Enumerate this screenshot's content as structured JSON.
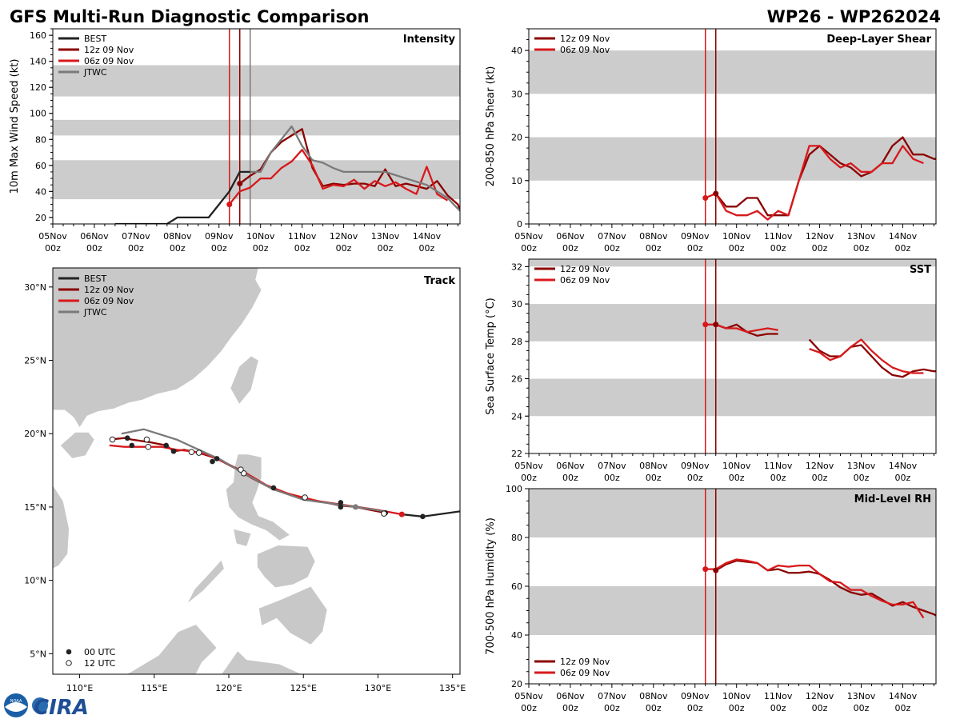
{
  "header": {
    "title_left": "GFS Multi-Run Diagnostic Comparison",
    "title_right": "WP26 - WP262024"
  },
  "logo": {
    "text": "CIRA",
    "noaa_text": "NOAA"
  },
  "colors": {
    "best": "#222222",
    "run12": "#8b0000",
    "run06": "#d7191c",
    "jtwc": "#7a7a7a",
    "band": "#cccccc",
    "land": "#c8c8c8"
  },
  "time_axis": {
    "range": [
      0,
      9.8
    ],
    "ticks": [
      0,
      1,
      2,
      3,
      4,
      5,
      6,
      7,
      8,
      9
    ],
    "labels": [
      "05Nov",
      "06Nov",
      "07Nov",
      "08Nov",
      "09Nov",
      "10Nov",
      "11Nov",
      "12Nov",
      "13Nov",
      "14Nov"
    ],
    "sublabel": "00z",
    "run_lines": [
      {
        "name": "06z 09 Nov",
        "t": 4.25
      },
      {
        "name": "12z 09 Nov",
        "t": 4.5
      }
    ],
    "jtwc_line": 4.75
  },
  "chart_data": [
    {
      "id": "intensity",
      "type": "line",
      "title": "Intensity",
      "ylabel": "10m Max Wind Speed (kt)",
      "ylim": [
        15,
        165
      ],
      "yticks": [
        20,
        40,
        60,
        80,
        100,
        120,
        140,
        160
      ],
      "bands": [
        [
          34,
          64
        ],
        [
          83,
          95
        ],
        [
          113,
          137
        ]
      ],
      "legend": [
        "BEST",
        "12z 09 Nov",
        "06z 09 Nov",
        "JTWC"
      ],
      "series": [
        {
          "name": "BEST",
          "x": [
            1.5,
            1.75,
            2,
            2.25,
            2.5,
            2.75,
            3,
            3.25,
            3.5,
            3.75,
            4,
            4.25,
            4.5,
            4.75
          ],
          "y": [
            15,
            15,
            15,
            15,
            15,
            15,
            20,
            20,
            20,
            20,
            30,
            40,
            55,
            55
          ]
        },
        {
          "name": "12z 09 Nov",
          "x": [
            4.5,
            4.75,
            5,
            5.25,
            5.5,
            5.75,
            6,
            6.25,
            6.5,
            6.75,
            7,
            7.25,
            7.5,
            7.75,
            8,
            8.25,
            8.5,
            8.75,
            9,
            9.25,
            9.5,
            9.75,
            9.8
          ],
          "y": [
            46,
            52,
            57,
            70,
            78,
            83,
            88,
            58,
            44,
            46,
            45,
            46,
            46,
            44,
            57,
            44,
            46,
            44,
            42,
            48,
            37,
            30,
            26
          ]
        },
        {
          "name": "06z 09 Nov",
          "x": [
            4.25,
            4.5,
            4.75,
            5,
            5.25,
            5.5,
            5.75,
            6,
            6.25,
            6.5,
            6.75,
            7,
            7.25,
            7.5,
            7.75,
            8,
            8.25,
            8.5,
            8.75,
            9,
            9.25,
            9.5
          ],
          "y": [
            30,
            40,
            43,
            50,
            50,
            58,
            63,
            72,
            60,
            42,
            45,
            44,
            49,
            42,
            48,
            44,
            47,
            42,
            38,
            59,
            38,
            33
          ]
        },
        {
          "name": "JTWC",
          "x": [
            4.75,
            5,
            5.25,
            5.75,
            6,
            6.25,
            6.5,
            6.75,
            7,
            7.5,
            7.75,
            8,
            8.5,
            9,
            9.5,
            9.8
          ],
          "y": [
            55,
            55,
            70,
            90,
            75,
            64,
            62,
            58,
            55,
            55,
            55,
            55,
            50,
            45,
            35,
            25
          ]
        }
      ],
      "start_markers": [
        {
          "series": "06z 09 Nov",
          "x": 4.25,
          "y": 30
        },
        {
          "series": "12z 09 Nov",
          "x": 4.5,
          "y": 46
        }
      ]
    },
    {
      "id": "shear",
      "type": "line",
      "title": "Deep-Layer Shear",
      "ylabel": "200-850 hPa Shear (kt)",
      "ylim": [
        0,
        45
      ],
      "yticks": [
        0,
        10,
        20,
        30,
        40
      ],
      "bands": [
        [
          10,
          20
        ],
        [
          30,
          40
        ]
      ],
      "legend": [
        "12z 09 Nov",
        "06z 09 Nov"
      ],
      "series": [
        {
          "name": "12z 09 Nov",
          "x": [
            4.5,
            4.75,
            5,
            5.25,
            5.5,
            5.75,
            6,
            6.25,
            6.5,
            6.75,
            7,
            7.25,
            7.5,
            7.75,
            8,
            8.25,
            8.5,
            8.75,
            9,
            9.25,
            9.5,
            9.75,
            9.8
          ],
          "y": [
            7,
            4,
            4,
            6,
            6,
            2,
            2,
            2,
            10,
            16,
            18,
            16,
            14,
            13,
            11,
            12,
            14,
            18,
            20,
            16,
            16,
            15,
            15
          ]
        },
        {
          "name": "06z 09 Nov",
          "x": [
            4.25,
            4.5,
            4.75,
            5,
            5.25,
            5.5,
            5.75,
            6,
            6.25,
            6.5,
            6.75,
            7,
            7.25,
            7.5,
            7.75,
            8,
            8.25,
            8.5,
            8.75,
            9,
            9.25,
            9.5
          ],
          "y": [
            6,
            7,
            3,
            2,
            2,
            3,
            1,
            3,
            2,
            10,
            18,
            18,
            15,
            13,
            14,
            12,
            12,
            14,
            14,
            18,
            15,
            14
          ]
        }
      ],
      "start_markers": [
        {
          "series": "06z 09 Nov",
          "x": 4.25,
          "y": 6
        },
        {
          "series": "12z 09 Nov",
          "x": 4.5,
          "y": 7
        }
      ]
    },
    {
      "id": "sst",
      "type": "line",
      "title": "SST",
      "ylabel": "Sea Surface Temp (°C)",
      "ylim": [
        22,
        32.4
      ],
      "yticks": [
        22,
        24,
        26,
        28,
        30,
        32
      ],
      "bands": [
        [
          24,
          26
        ],
        [
          28,
          30
        ],
        [
          32,
          32.4
        ]
      ],
      "legend": [
        "12z 09 Nov",
        "06z 09 Nov"
      ],
      "series": [
        {
          "name": "12z 09 Nov",
          "segments": [
            {
              "x": [
                4.5,
                4.75,
                5,
                5.25,
                5.5,
                5.75,
                6
              ],
              "y": [
                28.9,
                28.7,
                28.9,
                28.5,
                28.3,
                28.4,
                28.4
              ]
            },
            {
              "x": [
                6.75,
                7,
                7.25,
                7.5,
                7.75,
                8,
                8.25,
                8.5,
                8.75,
                9,
                9.25,
                9.5,
                9.75,
                9.8
              ],
              "y": [
                28.1,
                27.5,
                27.2,
                27.2,
                27.7,
                27.8,
                27.2,
                26.6,
                26.2,
                26.1,
                26.4,
                26.5,
                26.4,
                26.4
              ]
            }
          ]
        },
        {
          "name": "06z 09 Nov",
          "segments": [
            {
              "x": [
                4.25,
                4.5,
                4.75,
                5,
                5.25,
                5.5,
                5.75,
                6
              ],
              "y": [
                28.9,
                28.9,
                28.7,
                28.7,
                28.5,
                28.6,
                28.7,
                28.6
              ]
            },
            {
              "x": [
                6.75,
                7,
                7.25,
                7.5,
                7.75,
                8,
                8.25,
                8.5,
                8.75,
                9,
                9.25,
                9.5
              ],
              "y": [
                27.6,
                27.4,
                27.0,
                27.2,
                27.7,
                28.1,
                27.5,
                27.0,
                26.6,
                26.4,
                26.3,
                26.3
              ]
            }
          ]
        }
      ],
      "start_markers": [
        {
          "series": "06z 09 Nov",
          "x": 4.25,
          "y": 28.9
        },
        {
          "series": "12z 09 Nov",
          "x": 4.5,
          "y": 28.9
        }
      ]
    },
    {
      "id": "rh",
      "type": "line",
      "title": "Mid-Level RH",
      "ylabel": "700-500 hPa Humidity (%)",
      "ylim": [
        20,
        100
      ],
      "yticks": [
        20,
        40,
        60,
        80,
        100
      ],
      "bands": [
        [
          40,
          60
        ],
        [
          80,
          100
        ]
      ],
      "legend": [
        "12z 09 Nov",
        "06z 09 Nov"
      ],
      "series": [
        {
          "name": "12z 09 Nov",
          "x": [
            4.5,
            4.75,
            5,
            5.25,
            5.5,
            5.75,
            6,
            6.25,
            6.5,
            6.75,
            7,
            7.25,
            7.5,
            7.75,
            8,
            8.25,
            8.5,
            8.75,
            9,
            9.25,
            9.5,
            9.75,
            9.8
          ],
          "y": [
            66.5,
            69,
            70.5,
            70,
            69.5,
            66.5,
            67,
            65.5,
            65.5,
            66,
            65,
            62.5,
            59.5,
            57.5,
            56.5,
            57,
            54.5,
            52,
            53.5,
            51.5,
            50,
            48.5,
            48
          ]
        },
        {
          "name": "06z 09 Nov",
          "x": [
            4.25,
            4.5,
            4.75,
            5,
            5.25,
            5.5,
            5.75,
            6,
            6.25,
            6.5,
            6.75,
            7,
            7.25,
            7.5,
            7.75,
            8,
            8.25,
            8.5,
            8.75,
            9,
            9.25,
            9.5
          ],
          "y": [
            67,
            67,
            69.5,
            71,
            70.5,
            69.5,
            66.5,
            68.5,
            68,
            68.5,
            68.5,
            65,
            62,
            61.5,
            58.5,
            58.5,
            56,
            54,
            52.5,
            52.5,
            53.5,
            47
          ]
        }
      ],
      "start_markers": [
        {
          "series": "06z 09 Nov",
          "x": 4.25,
          "y": 67
        },
        {
          "series": "12z 09 Nov",
          "x": 4.5,
          "y": 66.5
        }
      ]
    },
    {
      "id": "track",
      "type": "scatter",
      "title": "Track",
      "xlim": [
        108.2,
        135.5
      ],
      "ylim": [
        3.6,
        31.3
      ],
      "xticks": [
        110,
        115,
        120,
        125,
        130,
        135
      ],
      "xticklabels": [
        "110°E",
        "115°E",
        "120°E",
        "125°E",
        "130°E",
        "135°E"
      ],
      "yticks": [
        5,
        10,
        15,
        20,
        25,
        30
      ],
      "yticklabels": [
        "5°N",
        "10°N",
        "15°N",
        "20°N",
        "25°N",
        "30°N"
      ],
      "legend": [
        "BEST",
        "12z 09 Nov",
        "06z 09 Nov",
        "JTWC"
      ],
      "marker_legend": [
        "00 UTC",
        "12 UTC"
      ],
      "series": [
        {
          "name": "BEST",
          "lon": [
            135.5,
            133.0,
            131.6
          ],
          "lat": [
            14.7,
            14.35,
            14.5
          ]
        },
        {
          "name": "12z 09 Nov",
          "lon": [
            130.5,
            129.5,
            128.5,
            127.5,
            126.5,
            125.0,
            123.0,
            121.5,
            120.5,
            119.2,
            118.0,
            117.0,
            116.3,
            115.8,
            114.8,
            113.5,
            113.0,
            112.0
          ],
          "lon_note": "",
          "lat": [
            14.6,
            14.8,
            15.0,
            15.1,
            15.3,
            15.6,
            16.2,
            17.0,
            17.6,
            18.3,
            18.7,
            18.9,
            18.8,
            19.2,
            19.4,
            19.6,
            19.7,
            19.6
          ]
        },
        {
          "name": "06z 09 Nov",
          "lon": [
            131.6,
            130.0,
            128.0,
            126.0,
            124.0,
            122.5,
            121.0,
            119.8,
            118.5,
            117.5,
            116.5,
            115.5,
            114.7,
            113.8,
            113.0,
            112.0
          ],
          "lat": [
            14.5,
            14.8,
            15.1,
            15.4,
            15.9,
            16.5,
            17.4,
            18.0,
            18.6,
            18.8,
            18.9,
            19.1,
            19.1,
            19.1,
            19.1,
            19.2
          ]
        },
        {
          "name": "JTWC",
          "lon": [
            130.5,
            128.5,
            125.0,
            123.0,
            121.0,
            119.5,
            118.0,
            116.5,
            114.3,
            112.8
          ],
          "lat": [
            14.7,
            15.0,
            15.5,
            16.2,
            17.3,
            18.2,
            18.9,
            19.6,
            20.3,
            20.0
          ]
        }
      ],
      "points_00": [
        [
          133.0,
          14.35
        ],
        [
          130.5,
          14.6
        ],
        [
          127.5,
          15.0
        ],
        [
          127.5,
          15.3
        ],
        [
          123.0,
          16.3
        ],
        [
          119.2,
          18.3
        ],
        [
          118.9,
          18.1
        ],
        [
          116.3,
          18.8
        ],
        [
          115.8,
          19.2
        ],
        [
          113.5,
          19.2
        ],
        [
          113.2,
          19.7
        ]
      ],
      "points_12": [
        [
          130.4,
          14.55
        ],
        [
          125.1,
          15.65
        ],
        [
          121.0,
          17.3
        ],
        [
          120.8,
          17.55
        ],
        [
          118.0,
          18.7
        ],
        [
          117.5,
          18.75
        ],
        [
          114.6,
          19.1
        ],
        [
          114.5,
          19.6
        ],
        [
          112.2,
          19.6
        ]
      ],
      "run_markers": [
        [
          131.6,
          14.5,
          "06z 09 Nov"
        ],
        [
          128.5,
          15.0,
          "JTWC"
        ]
      ]
    }
  ]
}
